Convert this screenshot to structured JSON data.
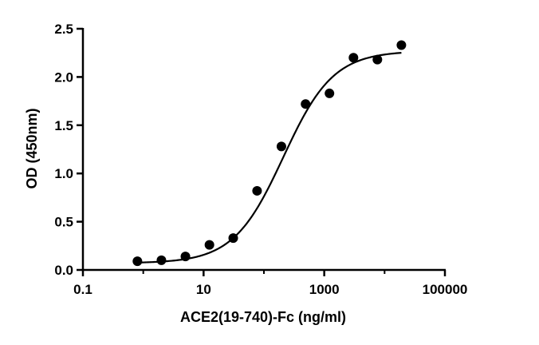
{
  "chart_data": {
    "type": "scatter",
    "title": "",
    "xlabel": "ACE2(19-740)-Fc (ng/ml)",
    "ylabel": "OD (450nm)",
    "xscale": "log",
    "xlim": [
      0.1,
      100000
    ],
    "ylim": [
      0,
      2.5
    ],
    "x_ticks": [
      0.1,
      10,
      1000,
      100000
    ],
    "x_tick_labels": [
      "0.1",
      "10",
      "1000",
      "100000"
    ],
    "y_ticks": [
      0,
      0.5,
      1.0,
      1.5,
      2.0,
      2.5
    ],
    "y_tick_labels": [
      "0.0",
      "0.5",
      "1.0",
      "1.5",
      "2.0",
      "2.5"
    ],
    "grid": false,
    "legend": "none",
    "marker_color": "#000000",
    "series": [
      {
        "points": [
          {
            "x": 0.8,
            "y": 0.09
          },
          {
            "x": 2.0,
            "y": 0.1
          },
          {
            "x": 5.0,
            "y": 0.14
          },
          {
            "x": 12.5,
            "y": 0.26
          },
          {
            "x": 31.0,
            "y": 0.33
          },
          {
            "x": 77.0,
            "y": 0.82
          },
          {
            "x": 195.0,
            "y": 1.28
          },
          {
            "x": 490.0,
            "y": 1.72
          },
          {
            "x": 1220.0,
            "y": 1.83
          },
          {
            "x": 3050.0,
            "y": 2.2
          },
          {
            "x": 7600.0,
            "y": 2.18
          },
          {
            "x": 19000.0,
            "y": 2.33
          }
        ]
      }
    ],
    "fit": {
      "type": "4PL",
      "bottom": 0.07,
      "top": 2.27,
      "ec50": 210,
      "hill": 1.05,
      "x_range": [
        0.8,
        19000
      ]
    }
  }
}
